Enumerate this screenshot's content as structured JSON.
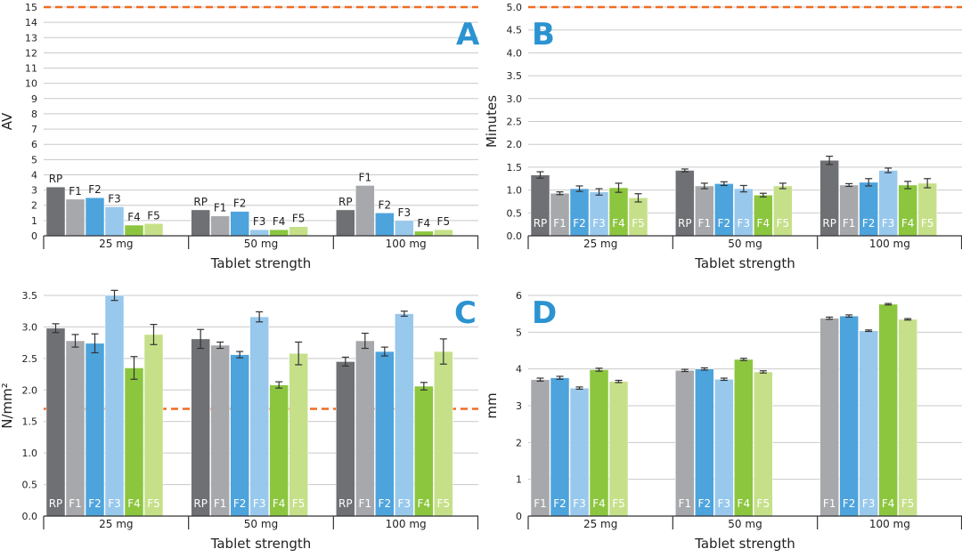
{
  "colors": {
    "RP": "#6e7074",
    "F1": "#a6a8ab",
    "F2": "#4da3dc",
    "F3": "#98c8ec",
    "F4": "#8cc63f",
    "F5": "#c6e089",
    "grid": "#c9c9c9",
    "axis": "#333333",
    "text": "#222222",
    "panel_letter": "#2b93d1",
    "limit_line": "#f26b21"
  },
  "chart_data": [
    {
      "panel": "A",
      "type": "bar",
      "ylabel": "AV",
      "xlabel": "Tablet strength",
      "ylim": [
        0,
        15
      ],
      "yticks": [
        0,
        1,
        2,
        3,
        4,
        5,
        6,
        7,
        8,
        9,
        10,
        11,
        12,
        13,
        14,
        15
      ],
      "limit_line": 15,
      "label_mode": "above",
      "categories": [
        "25 mg",
        "50 mg",
        "100 mg"
      ],
      "series": [
        {
          "name": "RP",
          "values": [
            3.2,
            1.7,
            1.7
          ]
        },
        {
          "name": "F1",
          "values": [
            2.4,
            1.3,
            3.3
          ]
        },
        {
          "name": "F2",
          "values": [
            2.5,
            1.6,
            1.5
          ]
        },
        {
          "name": "F3",
          "values": [
            1.9,
            0.4,
            1.0
          ]
        },
        {
          "name": "F4",
          "values": [
            0.7,
            0.4,
            0.3
          ]
        },
        {
          "name": "F5",
          "values": [
            0.8,
            0.6,
            0.4
          ]
        }
      ]
    },
    {
      "panel": "B",
      "type": "bar",
      "ylabel": "Minutes",
      "xlabel": "Tablet strength",
      "ylim": [
        0,
        5
      ],
      "yticks": [
        0.0,
        0.5,
        1.0,
        1.5,
        2.0,
        2.5,
        3.0,
        3.5,
        4.0,
        4.5,
        5.0
      ],
      "limit_line": 5.0,
      "label_mode": "inside",
      "categories": [
        "25 mg",
        "50 mg",
        "100 mg"
      ],
      "series": [
        {
          "name": "RP",
          "values": [
            1.33,
            1.43,
            1.65
          ],
          "errors": [
            0.07,
            0.03,
            0.09
          ]
        },
        {
          "name": "F1",
          "values": [
            0.93,
            1.09,
            1.11
          ],
          "errors": [
            0.03,
            0.06,
            0.03
          ]
        },
        {
          "name": "F2",
          "values": [
            1.03,
            1.14,
            1.17
          ],
          "errors": [
            0.06,
            0.04,
            0.08
          ]
        },
        {
          "name": "F3",
          "values": [
            0.96,
            1.03,
            1.43
          ],
          "errors": [
            0.07,
            0.07,
            0.05
          ]
        },
        {
          "name": "F4",
          "values": [
            1.05,
            0.89,
            1.11
          ],
          "errors": [
            0.1,
            0.04,
            0.08
          ]
        },
        {
          "name": "F5",
          "values": [
            0.83,
            1.09,
            1.15
          ],
          "errors": [
            0.09,
            0.06,
            0.1
          ]
        }
      ]
    },
    {
      "panel": "C",
      "type": "bar",
      "ylabel": "N/mm²",
      "xlabel": "Tablet strength",
      "ylim": [
        0,
        3.5
      ],
      "yticks": [
        0.0,
        0.5,
        1.0,
        1.5,
        2.0,
        2.5,
        3.0,
        3.5
      ],
      "limit_line": 1.7,
      "label_mode": "inside",
      "categories": [
        "25 mg",
        "50 mg",
        "100 mg"
      ],
      "series": [
        {
          "name": "RP",
          "values": [
            2.98,
            2.81,
            2.45
          ],
          "errors": [
            0.07,
            0.15,
            0.07
          ]
        },
        {
          "name": "F1",
          "values": [
            2.78,
            2.71,
            2.78
          ],
          "errors": [
            0.1,
            0.05,
            0.12
          ]
        },
        {
          "name": "F2",
          "values": [
            2.74,
            2.56,
            2.61
          ],
          "errors": [
            0.15,
            0.05,
            0.07
          ]
        },
        {
          "name": "F3",
          "values": [
            3.5,
            3.16,
            3.21
          ],
          "errors": [
            0.08,
            0.08,
            0.04
          ]
        },
        {
          "name": "F4",
          "values": [
            2.35,
            2.08,
            2.06
          ],
          "errors": [
            0.18,
            0.05,
            0.06
          ]
        },
        {
          "name": "F5",
          "values": [
            2.88,
            2.58,
            2.61
          ],
          "errors": [
            0.16,
            0.18,
            0.2
          ]
        }
      ]
    },
    {
      "panel": "D",
      "type": "bar",
      "ylabel": "mm",
      "xlabel": "Tablet strength",
      "ylim": [
        0,
        6
      ],
      "yticks": [
        0,
        1,
        2,
        3,
        4,
        5,
        6
      ],
      "limit_line": null,
      "label_mode": "inside",
      "categories": [
        "25 mg",
        "50 mg",
        "100 mg"
      ],
      "series": [
        {
          "name": "F1",
          "values": [
            3.71,
            3.96,
            5.38
          ],
          "errors": [
            0.04,
            0.03,
            0.03
          ]
        },
        {
          "name": "F2",
          "values": [
            3.76,
            4.0,
            5.44
          ],
          "errors": [
            0.04,
            0.03,
            0.03
          ]
        },
        {
          "name": "F3",
          "values": [
            3.48,
            3.72,
            5.04
          ],
          "errors": [
            0.03,
            0.03,
            0.02
          ]
        },
        {
          "name": "F4",
          "values": [
            3.98,
            4.26,
            5.76
          ],
          "errors": [
            0.04,
            0.03,
            0.02
          ]
        },
        {
          "name": "F5",
          "values": [
            3.66,
            3.92,
            5.35
          ],
          "errors": [
            0.03,
            0.03,
            0.02
          ]
        }
      ]
    }
  ]
}
